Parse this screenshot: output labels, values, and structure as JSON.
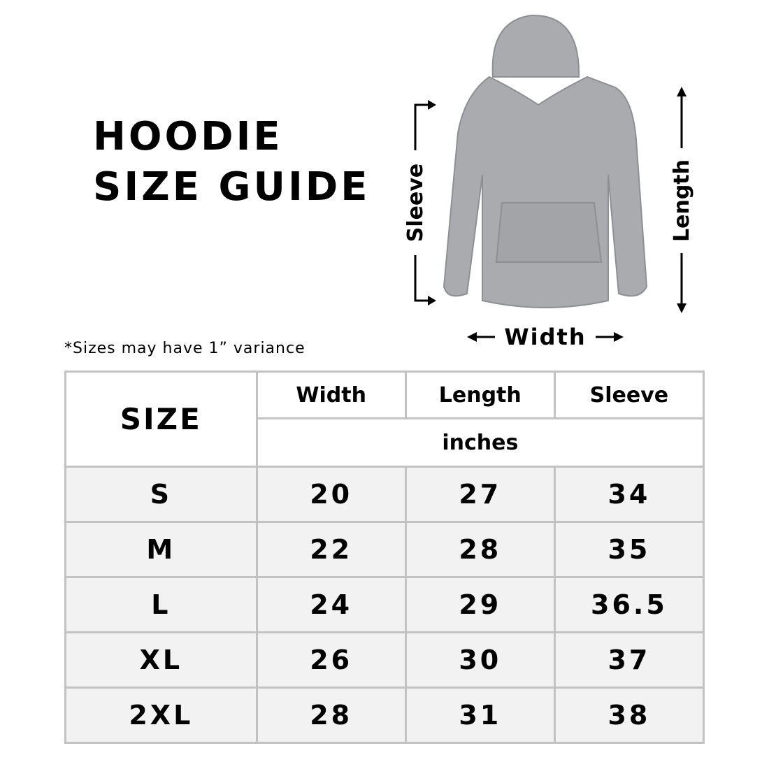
{
  "title": {
    "line1": "HOODIE",
    "line2": "SIZE GUIDE"
  },
  "diagram": {
    "sleeve_label": "Sleeve",
    "length_label": "Length",
    "width_label": "Width",
    "hoodie_color": "#a9abaf"
  },
  "note": "*Sizes may have 1” variance",
  "table": {
    "size_header": "SIZE",
    "columns": [
      "Width",
      "Length",
      "Sleeve"
    ],
    "unit": "inches",
    "rows": [
      {
        "size": "S",
        "width": "20",
        "length": "27",
        "sleeve": "34"
      },
      {
        "size": "M",
        "width": "22",
        "length": "28",
        "sleeve": "35"
      },
      {
        "size": "L",
        "width": "24",
        "length": "29",
        "sleeve": "36.5"
      },
      {
        "size": "XL",
        "width": "26",
        "length": "30",
        "sleeve": "37"
      },
      {
        "size": "2XL",
        "width": "28",
        "length": "31",
        "sleeve": "38"
      }
    ]
  }
}
